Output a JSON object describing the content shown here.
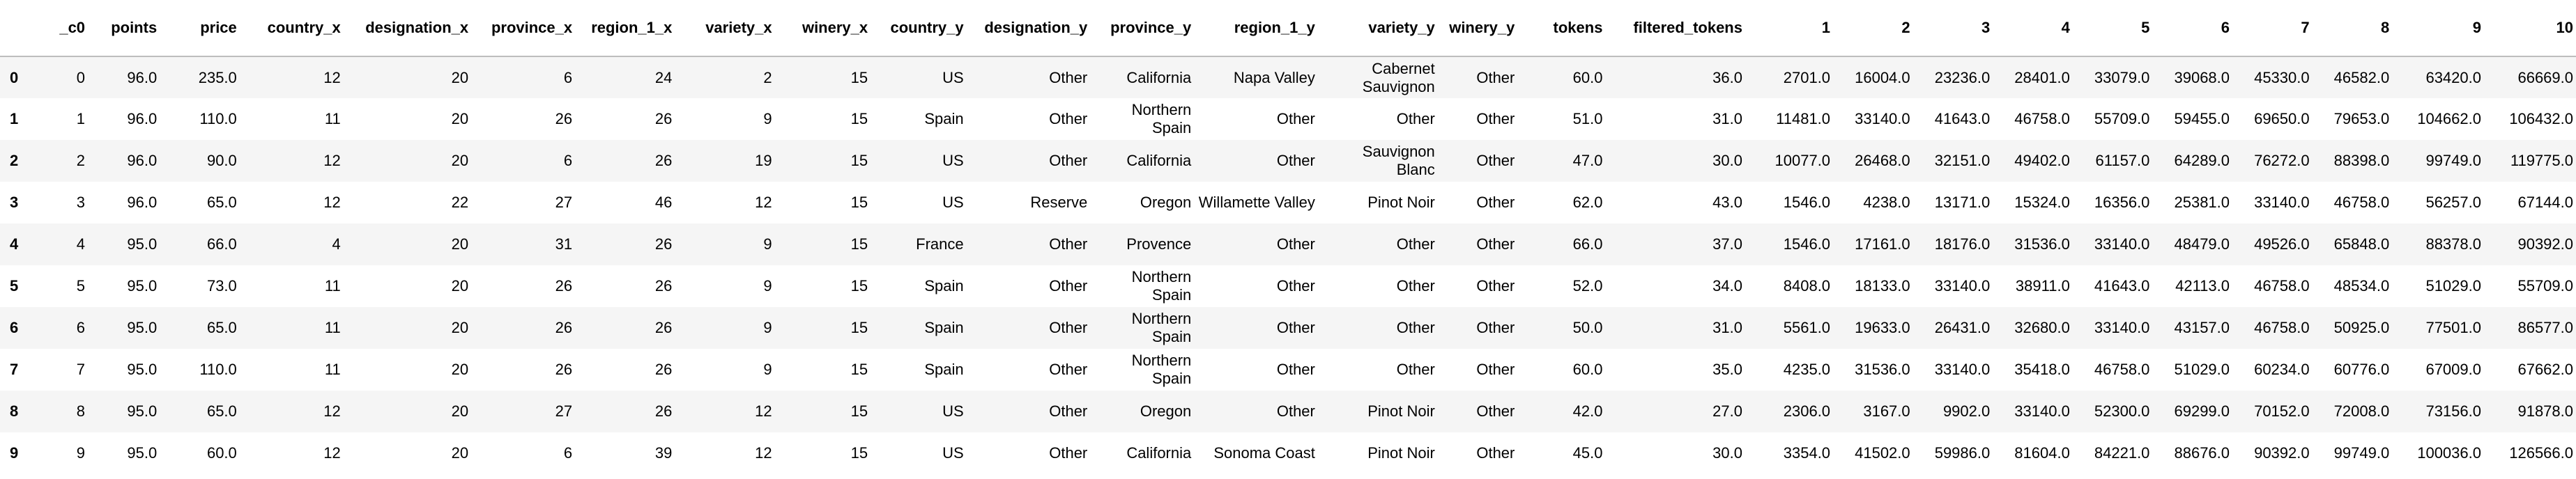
{
  "table": {
    "columns": [
      "_c0",
      "points",
      "price",
      "country_x",
      "designation_x",
      "province_x",
      "region_1_x",
      "variety_x",
      "winery_x",
      "country_y",
      "designation_y",
      "province_y",
      "region_1_y",
      "variety_y",
      "winery_y",
      "tokens",
      "filtered_tokens",
      "1",
      "2",
      "3",
      "4",
      "5",
      "6",
      "7",
      "8",
      "9",
      "10"
    ],
    "rows": [
      {
        "index": "0",
        "cells": [
          "0",
          "96.0",
          "235.0",
          "12",
          "20",
          "6",
          "24",
          "2",
          "15",
          "US",
          "Other",
          "California",
          "Napa Valley",
          "Cabernet Sauvignon",
          "Other",
          "60.0",
          "36.0",
          "2701.0",
          "16004.0",
          "23236.0",
          "28401.0",
          "33079.0",
          "39068.0",
          "45330.0",
          "46582.0",
          "63420.0",
          "66669.0"
        ]
      },
      {
        "index": "1",
        "cells": [
          "1",
          "96.0",
          "110.0",
          "11",
          "20",
          "26",
          "26",
          "9",
          "15",
          "Spain",
          "Other",
          "Northern Spain",
          "Other",
          "Other",
          "Other",
          "51.0",
          "31.0",
          "11481.0",
          "33140.0",
          "41643.0",
          "46758.0",
          "55709.0",
          "59455.0",
          "69650.0",
          "79653.0",
          "104662.0",
          "106432.0"
        ]
      },
      {
        "index": "2",
        "cells": [
          "2",
          "96.0",
          "90.0",
          "12",
          "20",
          "6",
          "26",
          "19",
          "15",
          "US",
          "Other",
          "California",
          "Other",
          "Sauvignon Blanc",
          "Other",
          "47.0",
          "30.0",
          "10077.0",
          "26468.0",
          "32151.0",
          "49402.0",
          "61157.0",
          "64289.0",
          "76272.0",
          "88398.0",
          "99749.0",
          "119775.0"
        ]
      },
      {
        "index": "3",
        "cells": [
          "3",
          "96.0",
          "65.0",
          "12",
          "22",
          "27",
          "46",
          "12",
          "15",
          "US",
          "Reserve",
          "Oregon",
          "Willamette Valley",
          "Pinot Noir",
          "Other",
          "62.0",
          "43.0",
          "1546.0",
          "4238.0",
          "13171.0",
          "15324.0",
          "16356.0",
          "25381.0",
          "33140.0",
          "46758.0",
          "56257.0",
          "67144.0"
        ]
      },
      {
        "index": "4",
        "cells": [
          "4",
          "95.0",
          "66.0",
          "4",
          "20",
          "31",
          "26",
          "9",
          "15",
          "France",
          "Other",
          "Provence",
          "Other",
          "Other",
          "Other",
          "66.0",
          "37.0",
          "1546.0",
          "17161.0",
          "18176.0",
          "31536.0",
          "33140.0",
          "48479.0",
          "49526.0",
          "65848.0",
          "88378.0",
          "90392.0"
        ]
      },
      {
        "index": "5",
        "cells": [
          "5",
          "95.0",
          "73.0",
          "11",
          "20",
          "26",
          "26",
          "9",
          "15",
          "Spain",
          "Other",
          "Northern Spain",
          "Other",
          "Other",
          "Other",
          "52.0",
          "34.0",
          "8408.0",
          "18133.0",
          "33140.0",
          "38911.0",
          "41643.0",
          "42113.0",
          "46758.0",
          "48534.0",
          "51029.0",
          "55709.0"
        ]
      },
      {
        "index": "6",
        "cells": [
          "6",
          "95.0",
          "65.0",
          "11",
          "20",
          "26",
          "26",
          "9",
          "15",
          "Spain",
          "Other",
          "Northern Spain",
          "Other",
          "Other",
          "Other",
          "50.0",
          "31.0",
          "5561.0",
          "19633.0",
          "26431.0",
          "32680.0",
          "33140.0",
          "43157.0",
          "46758.0",
          "50925.0",
          "77501.0",
          "86577.0"
        ]
      },
      {
        "index": "7",
        "cells": [
          "7",
          "95.0",
          "110.0",
          "11",
          "20",
          "26",
          "26",
          "9",
          "15",
          "Spain",
          "Other",
          "Northern Spain",
          "Other",
          "Other",
          "Other",
          "60.0",
          "35.0",
          "4235.0",
          "31536.0",
          "33140.0",
          "35418.0",
          "46758.0",
          "51029.0",
          "60234.0",
          "60776.0",
          "67009.0",
          "67662.0"
        ]
      },
      {
        "index": "8",
        "cells": [
          "8",
          "95.0",
          "65.0",
          "12",
          "20",
          "27",
          "26",
          "12",
          "15",
          "US",
          "Other",
          "Oregon",
          "Other",
          "Pinot Noir",
          "Other",
          "42.0",
          "27.0",
          "2306.0",
          "3167.0",
          "9902.0",
          "33140.0",
          "52300.0",
          "69299.0",
          "70152.0",
          "72008.0",
          "73156.0",
          "91878.0"
        ]
      },
      {
        "index": "9",
        "cells": [
          "9",
          "95.0",
          "60.0",
          "12",
          "20",
          "6",
          "39",
          "12",
          "15",
          "US",
          "Other",
          "California",
          "Sonoma Coast",
          "Pinot Noir",
          "Other",
          "45.0",
          "30.0",
          "3354.0",
          "41502.0",
          "59986.0",
          "81604.0",
          "84221.0",
          "88676.0",
          "90392.0",
          "99749.0",
          "100036.0",
          "126566.0"
        ]
      }
    ]
  }
}
